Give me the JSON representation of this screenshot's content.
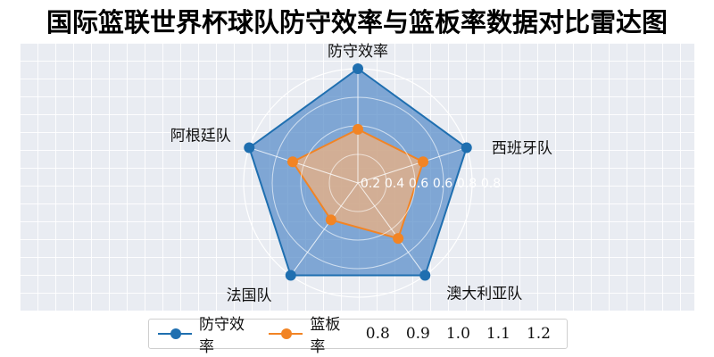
{
  "title": "国际篮联世界杯球队防守效率与篮板率数据对比雷达图",
  "chart_data": {
    "type": "radar",
    "categories": [
      "防守效率",
      "西班牙队",
      "澳大利亚队",
      "法国队",
      "阿根廷队"
    ],
    "series": [
      {
        "name": "防守效率",
        "color": "#1f6fb0",
        "fill": "#5b8fc9",
        "values": [
          1.0,
          1.0,
          1.0,
          1.0,
          1.0
        ]
      },
      {
        "name": "篮板率",
        "color": "#f28424",
        "fill": "#f5b27a",
        "values": [
          0.47,
          0.6,
          0.6,
          0.4,
          0.6
        ]
      }
    ],
    "radial_ticks": [
      "0.2",
      "0.4",
      "0.6",
      "0.6",
      "0.8",
      "0.8"
    ],
    "legend_extra": [
      "0.8",
      "0.9",
      "1.0",
      "1.1",
      "1.2"
    ]
  }
}
